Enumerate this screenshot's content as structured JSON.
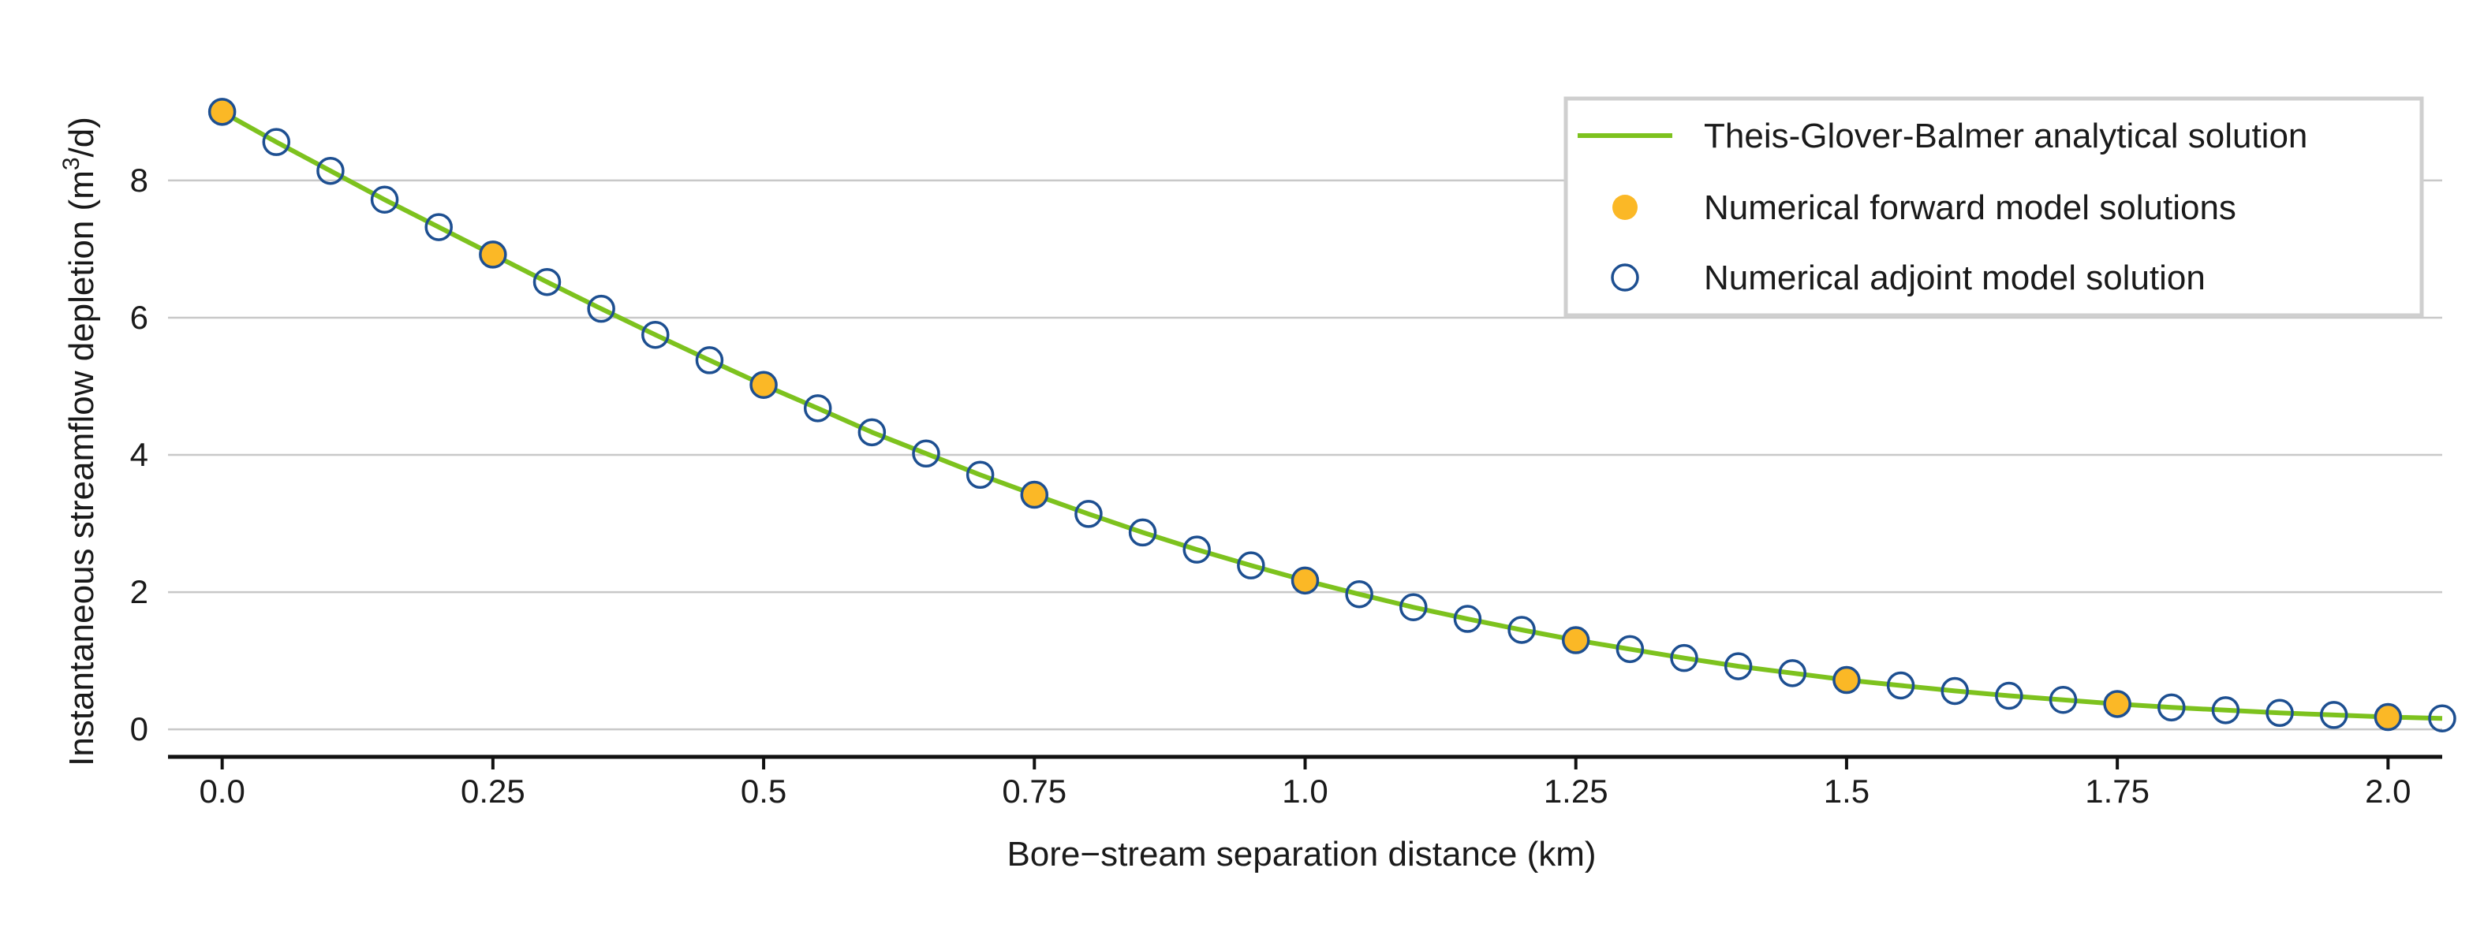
{
  "chart_data": {
    "type": "line",
    "xlabel": "Bore−stream separation distance (km)",
    "ylabel": "Instantaneous streamflow depletion (m",
    "ylabel_sup": "3",
    "ylabel_tail": "/d)",
    "xlim": [
      -0.05,
      2.05
    ],
    "ylim": [
      -0.4,
      10.4
    ],
    "x_ticks": [
      0.0,
      0.25,
      0.5,
      0.75,
      1.0,
      1.25,
      1.5,
      1.75,
      2.0
    ],
    "x_tick_labels": [
      "0.0",
      "0.25",
      "0.5",
      "0.75",
      "1.0",
      "1.25",
      "1.5",
      "1.75",
      "2.0"
    ],
    "y_ticks": [
      0,
      2,
      4,
      6,
      8
    ],
    "y_tick_labels": [
      "0",
      "2",
      "4",
      "6",
      "8"
    ],
    "grid": "horizontal",
    "legend_position": "top-right",
    "colors": {
      "analytical_line": "#7dc21e",
      "forward_fill": "#fbb826",
      "adjoint_edge": "#1d4f91",
      "grid": "#c8c8c8",
      "axis": "#111111"
    },
    "series": [
      {
        "name": "Theis-Glover-Balmer analytical solution",
        "kind": "line",
        "x": [
          0.0,
          0.05,
          0.1,
          0.15,
          0.2,
          0.25,
          0.3,
          0.35,
          0.4,
          0.45,
          0.5,
          0.55,
          0.6,
          0.65,
          0.7,
          0.75,
          0.8,
          0.85,
          0.9,
          0.95,
          1.0,
          1.05,
          1.1,
          1.15,
          1.2,
          1.25,
          1.3,
          1.35,
          1.4,
          1.45,
          1.5,
          1.55,
          1.6,
          1.65,
          1.7,
          1.75,
          1.8,
          1.85,
          1.9,
          1.95,
          2.0,
          2.05
        ],
        "y": [
          9.0,
          8.56,
          8.14,
          7.72,
          7.32,
          6.92,
          6.52,
          6.13,
          5.75,
          5.38,
          5.02,
          4.68,
          4.33,
          4.02,
          3.71,
          3.42,
          3.14,
          2.87,
          2.62,
          2.39,
          2.17,
          1.97,
          1.78,
          1.61,
          1.45,
          1.3,
          1.17,
          1.04,
          0.92,
          0.82,
          0.72,
          0.64,
          0.56,
          0.49,
          0.43,
          0.37,
          0.32,
          0.28,
          0.24,
          0.21,
          0.18,
          0.16
        ]
      },
      {
        "name": "Numerical forward model solutions",
        "kind": "marker-filled",
        "x": [
          0.0,
          0.25,
          0.5,
          0.75,
          1.0,
          1.25,
          1.5,
          1.75,
          2.0
        ],
        "y": [
          9.0,
          6.92,
          5.02,
          3.42,
          2.17,
          1.3,
          0.72,
          0.37,
          0.18
        ]
      },
      {
        "name": "Numerical adjoint model solution",
        "kind": "marker-open",
        "x": [
          0.0,
          0.05,
          0.1,
          0.15,
          0.2,
          0.25,
          0.3,
          0.35,
          0.4,
          0.45,
          0.5,
          0.55,
          0.6,
          0.65,
          0.7,
          0.75,
          0.8,
          0.85,
          0.9,
          0.95,
          1.0,
          1.05,
          1.1,
          1.15,
          1.2,
          1.25,
          1.3,
          1.35,
          1.4,
          1.45,
          1.5,
          1.55,
          1.6,
          1.65,
          1.7,
          1.75,
          1.8,
          1.85,
          1.9,
          1.95,
          2.0,
          2.05
        ],
        "y": [
          9.0,
          8.56,
          8.14,
          7.72,
          7.32,
          6.92,
          6.52,
          6.13,
          5.75,
          5.38,
          5.02,
          4.68,
          4.33,
          4.02,
          3.71,
          3.42,
          3.14,
          2.87,
          2.62,
          2.39,
          2.17,
          1.97,
          1.78,
          1.61,
          1.45,
          1.3,
          1.17,
          1.04,
          0.92,
          0.82,
          0.72,
          0.64,
          0.56,
          0.49,
          0.43,
          0.37,
          0.32,
          0.28,
          0.24,
          0.21,
          0.18,
          0.16
        ]
      }
    ]
  }
}
